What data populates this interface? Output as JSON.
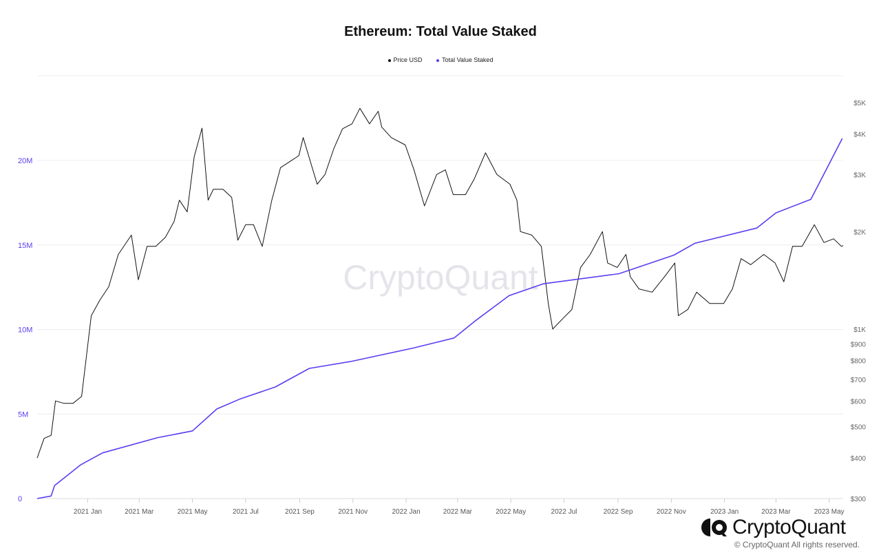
{
  "chart_data": {
    "type": "line",
    "title": "Ethereum: Total Value Staked",
    "legend": {
      "placement": "top-center"
    },
    "grid": true,
    "x_axis": {
      "type": "date",
      "range": [
        "2020-11-04",
        "2023-05-17"
      ],
      "ticks": [
        {
          "date": "2021-01-01",
          "label": "2021 Jan"
        },
        {
          "date": "2021-03-01",
          "label": "2021 Mar"
        },
        {
          "date": "2021-05-01",
          "label": "2021 May"
        },
        {
          "date": "2021-07-01",
          "label": "2021 Jul"
        },
        {
          "date": "2021-09-01",
          "label": "2021 Sep"
        },
        {
          "date": "2021-11-01",
          "label": "2021 Nov"
        },
        {
          "date": "2022-01-01",
          "label": "2022 Jan"
        },
        {
          "date": "2022-03-01",
          "label": "2022 Mar"
        },
        {
          "date": "2022-05-01",
          "label": "2022 May"
        },
        {
          "date": "2022-07-01",
          "label": "2022 Jul"
        },
        {
          "date": "2022-09-01",
          "label": "2022 Sep"
        },
        {
          "date": "2022-11-01",
          "label": "2022 Nov"
        },
        {
          "date": "2023-01-01",
          "label": "2023 Jan"
        },
        {
          "date": "2023-03-01",
          "label": "2023 Mar"
        },
        {
          "date": "2023-05-01",
          "label": "2023 May"
        }
      ]
    },
    "y_left": {
      "scale": "linear",
      "range": [
        0,
        20000000
      ],
      "color": "#5a3ef0",
      "ticks": [
        {
          "v": 0,
          "label": "0"
        },
        {
          "v": 5000000,
          "label": "5M"
        },
        {
          "v": 10000000,
          "label": "10M"
        },
        {
          "v": 15000000,
          "label": "15M"
        },
        {
          "v": 20000000,
          "label": "20M"
        }
      ]
    },
    "y_right": {
      "scale": "log",
      "range": [
        300,
        5000
      ],
      "ticks": [
        {
          "v": 300,
          "label": "$300"
        },
        {
          "v": 400,
          "label": "$400"
        },
        {
          "v": 500,
          "label": "$500"
        },
        {
          "v": 600,
          "label": "$600"
        },
        {
          "v": 700,
          "label": "$700"
        },
        {
          "v": 800,
          "label": "$800"
        },
        {
          "v": 900,
          "label": "$900"
        },
        {
          "v": 1000,
          "label": "$1K"
        },
        {
          "v": 2000,
          "label": "$2K"
        },
        {
          "v": 3000,
          "label": "$3K"
        },
        {
          "v": 4000,
          "label": "$4K"
        },
        {
          "v": 5000,
          "label": "$5K"
        }
      ]
    },
    "series": [
      {
        "name": "Price USD",
        "axis": "right",
        "color": "#111111",
        "points": [
          [
            "2020-11-04",
            400
          ],
          [
            "2020-11-12",
            460
          ],
          [
            "2020-11-20",
            470
          ],
          [
            "2020-11-25",
            600
          ],
          [
            "2020-12-05",
            590
          ],
          [
            "2020-12-15",
            590
          ],
          [
            "2020-12-25",
            620
          ],
          [
            "2021-01-05",
            1100
          ],
          [
            "2021-01-15",
            1230
          ],
          [
            "2021-01-25",
            1350
          ],
          [
            "2021-02-05",
            1700
          ],
          [
            "2021-02-20",
            1950
          ],
          [
            "2021-02-28",
            1420
          ],
          [
            "2021-03-10",
            1800
          ],
          [
            "2021-03-20",
            1800
          ],
          [
            "2021-03-31",
            1920
          ],
          [
            "2021-04-10",
            2150
          ],
          [
            "2021-04-16",
            2500
          ],
          [
            "2021-04-25",
            2300
          ],
          [
            "2021-05-03",
            3400
          ],
          [
            "2021-05-12",
            4170
          ],
          [
            "2021-05-19",
            2500
          ],
          [
            "2021-05-25",
            2700
          ],
          [
            "2021-06-05",
            2700
          ],
          [
            "2021-06-15",
            2550
          ],
          [
            "2021-06-22",
            1880
          ],
          [
            "2021-07-01",
            2100
          ],
          [
            "2021-07-10",
            2100
          ],
          [
            "2021-07-20",
            1800
          ],
          [
            "2021-07-31",
            2500
          ],
          [
            "2021-08-10",
            3150
          ],
          [
            "2021-08-20",
            3280
          ],
          [
            "2021-08-31",
            3430
          ],
          [
            "2021-09-05",
            3900
          ],
          [
            "2021-09-21",
            2800
          ],
          [
            "2021-09-30",
            3000
          ],
          [
            "2021-10-10",
            3600
          ],
          [
            "2021-10-20",
            4150
          ],
          [
            "2021-10-31",
            4300
          ],
          [
            "2021-11-09",
            4800
          ],
          [
            "2021-11-20",
            4300
          ],
          [
            "2021-11-30",
            4700
          ],
          [
            "2021-12-04",
            4200
          ],
          [
            "2021-12-15",
            3900
          ],
          [
            "2021-12-31",
            3700
          ],
          [
            "2022-01-10",
            3100
          ],
          [
            "2022-01-22",
            2400
          ],
          [
            "2022-02-05",
            3000
          ],
          [
            "2022-02-15",
            3100
          ],
          [
            "2022-02-24",
            2600
          ],
          [
            "2022-03-10",
            2600
          ],
          [
            "2022-03-20",
            2900
          ],
          [
            "2022-04-02",
            3500
          ],
          [
            "2022-04-15",
            3000
          ],
          [
            "2022-04-30",
            2800
          ],
          [
            "2022-05-08",
            2500
          ],
          [
            "2022-05-12",
            2000
          ],
          [
            "2022-05-25",
            1950
          ],
          [
            "2022-06-05",
            1800
          ],
          [
            "2022-06-13",
            1200
          ],
          [
            "2022-06-18",
            1000
          ],
          [
            "2022-06-30",
            1080
          ],
          [
            "2022-07-10",
            1150
          ],
          [
            "2022-07-20",
            1550
          ],
          [
            "2022-07-31",
            1700
          ],
          [
            "2022-08-14",
            2000
          ],
          [
            "2022-08-20",
            1600
          ],
          [
            "2022-08-31",
            1550
          ],
          [
            "2022-09-10",
            1700
          ],
          [
            "2022-09-15",
            1450
          ],
          [
            "2022-09-25",
            1330
          ],
          [
            "2022-10-10",
            1300
          ],
          [
            "2022-10-25",
            1460
          ],
          [
            "2022-11-05",
            1600
          ],
          [
            "2022-11-09",
            1100
          ],
          [
            "2022-11-20",
            1150
          ],
          [
            "2022-11-30",
            1300
          ],
          [
            "2022-12-15",
            1200
          ],
          [
            "2022-12-31",
            1200
          ],
          [
            "2023-01-10",
            1330
          ],
          [
            "2023-01-20",
            1650
          ],
          [
            "2023-01-31",
            1580
          ],
          [
            "2023-02-15",
            1700
          ],
          [
            "2023-02-28",
            1600
          ],
          [
            "2023-03-10",
            1400
          ],
          [
            "2023-03-20",
            1800
          ],
          [
            "2023-03-31",
            1800
          ],
          [
            "2023-04-14",
            2100
          ],
          [
            "2023-04-25",
            1850
          ],
          [
            "2023-05-06",
            1900
          ],
          [
            "2023-05-15",
            1800
          ],
          [
            "2023-05-17",
            1810
          ]
        ]
      },
      {
        "name": "Total Value Staked",
        "axis": "left",
        "color": "#5a3ef0",
        "points": [
          [
            "2020-11-04",
            0
          ],
          [
            "2020-11-20",
            150000
          ],
          [
            "2020-11-24",
            770000
          ],
          [
            "2020-12-24",
            2000000
          ],
          [
            "2021-01-18",
            2700000
          ],
          [
            "2021-03-22",
            3600000
          ],
          [
            "2021-05-01",
            4000000
          ],
          [
            "2021-05-29",
            5300000
          ],
          [
            "2021-06-25",
            5900000
          ],
          [
            "2021-08-04",
            6600000
          ],
          [
            "2021-09-12",
            7700000
          ],
          [
            "2021-10-29",
            8100000
          ],
          [
            "2022-01-09",
            8900000
          ],
          [
            "2022-02-25",
            9500000
          ],
          [
            "2022-03-21",
            10500000
          ],
          [
            "2022-04-29",
            12000000
          ],
          [
            "2022-06-07",
            12700000
          ],
          [
            "2022-09-02",
            13300000
          ],
          [
            "2022-11-04",
            14400000
          ],
          [
            "2022-11-28",
            15100000
          ],
          [
            "2023-02-07",
            16000000
          ],
          [
            "2023-03-01",
            16900000
          ],
          [
            "2023-04-10",
            17700000
          ],
          [
            "2023-04-26",
            19300000
          ],
          [
            "2023-05-16",
            21300000
          ]
        ]
      }
    ]
  },
  "watermark": "CryptoQuant",
  "footer": {
    "logo_text": "CryptoQuant",
    "copyright": "© CryptoQuant All rights reserved."
  }
}
